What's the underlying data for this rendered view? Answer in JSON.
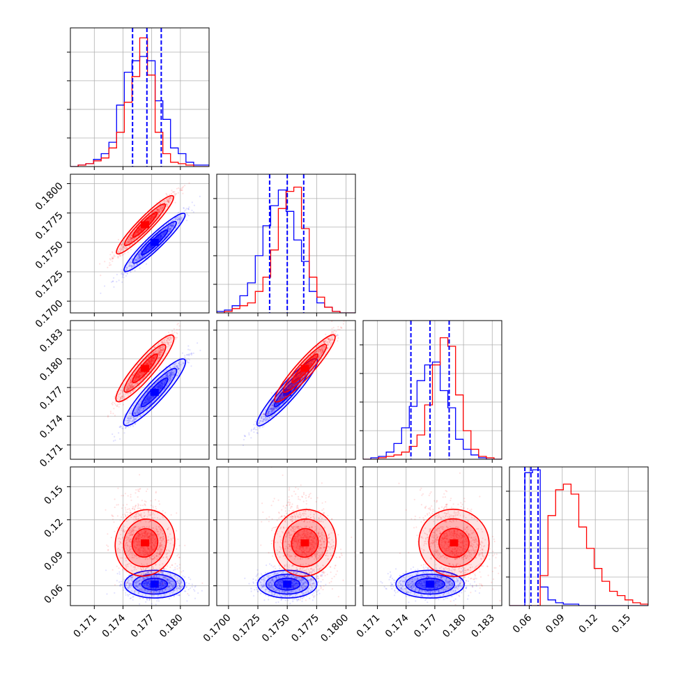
{
  "chart_data": {
    "type": "corner",
    "grid": true,
    "n_params": 4,
    "param_ranges": [
      [
        0.1685,
        0.183
      ],
      [
        0.169,
        0.1808
      ],
      [
        0.1695,
        0.184
      ],
      [
        0.042,
        0.168
      ]
    ],
    "param_ticks": [
      {
        "values": [
          0.171,
          0.174,
          0.177,
          0.18
        ],
        "labels": [
          "0.171",
          "0.174",
          "0.177",
          "0.180"
        ]
      },
      {
        "values": [
          0.17,
          0.1725,
          0.175,
          0.1775,
          0.18
        ],
        "labels": [
          "0.1700",
          "0.1725",
          "0.1750",
          "0.1775",
          "0.1800"
        ]
      },
      {
        "values": [
          0.171,
          0.174,
          0.177,
          0.18,
          0.183
        ],
        "labels": [
          "0.171",
          "0.174",
          "0.177",
          "0.180",
          "0.183"
        ]
      },
      {
        "values": [
          0.06,
          0.09,
          0.12,
          0.15
        ],
        "labels": [
          "0.06",
          "0.09",
          "0.12",
          "0.15"
        ]
      }
    ],
    "series": [
      {
        "color": "#0000ff",
        "means": [
          0.1773,
          0.175,
          0.1765,
          0.0615
        ],
        "sigmas": [
          0.0015,
          0.0012,
          0.0017,
          0.006
        ],
        "correlations": [
          [
            0,
            1,
            0.97
          ],
          [
            0,
            2,
            0.96
          ],
          [
            1,
            2,
            0.97
          ]
        ],
        "quantiles": [
          [
            0.175,
            0.1765,
            0.178
          ],
          [
            0.1735,
            0.175,
            0.1764
          ],
          [
            0.1745,
            0.1765,
            0.1785
          ],
          [
            0.056,
            0.0615,
            0.068
          ]
        ],
        "hist_heights": [
          [
            0.0,
            0.01,
            0.02,
            0.05,
            0.09,
            0.17,
            0.43,
            0.66,
            0.74,
            0.77,
            0.74,
            0.46,
            0.33,
            0.13,
            0.09,
            0.03,
            0.01,
            0.01
          ],
          [
            0.01,
            0.02,
            0.05,
            0.12,
            0.21,
            0.4,
            0.61,
            0.75,
            0.86,
            0.71,
            0.51,
            0.36,
            0.15,
            0.07,
            0.04,
            0.01,
            0.0,
            0.0
          ],
          [
            0.0,
            0.01,
            0.02,
            0.05,
            0.11,
            0.22,
            0.37,
            0.55,
            0.66,
            0.68,
            0.48,
            0.36,
            0.14,
            0.07,
            0.03,
            0.01,
            0.0,
            0.0
          ],
          [
            0.0,
            0.0,
            0.93,
            0.95,
            0.13,
            0.04,
            0.02,
            0.01,
            0.01,
            0.0,
            0.0,
            0.0,
            0.0,
            0.0,
            0.0,
            0.0,
            0.0,
            0.0
          ]
        ]
      },
      {
        "color": "#ff0000",
        "means": [
          0.1763,
          0.1765,
          0.179,
          0.099
        ],
        "sigmas": [
          0.0014,
          0.0012,
          0.0017,
          0.015
        ],
        "correlations": [
          [
            0,
            1,
            0.97
          ],
          [
            0,
            2,
            0.96
          ],
          [
            1,
            2,
            0.97
          ],
          [
            0,
            3,
            -0.25
          ],
          [
            1,
            3,
            -0.25
          ],
          [
            2,
            3,
            -0.25
          ]
        ],
        "quantiles": [],
        "hist_heights": [
          [
            0.0,
            0.01,
            0.02,
            0.04,
            0.06,
            0.13,
            0.24,
            0.45,
            0.63,
            0.9,
            0.64,
            0.24,
            0.09,
            0.03,
            0.02,
            0.01,
            0.0,
            0.0
          ],
          [
            0.0,
            0.01,
            0.03,
            0.05,
            0.07,
            0.15,
            0.25,
            0.44,
            0.73,
            0.85,
            0.88,
            0.59,
            0.25,
            0.11,
            0.04,
            0.01,
            0.0,
            0.0
          ],
          [
            0.0,
            0.0,
            0.01,
            0.02,
            0.03,
            0.05,
            0.09,
            0.17,
            0.38,
            0.66,
            0.85,
            0.79,
            0.45,
            0.2,
            0.07,
            0.02,
            0.01,
            0.0
          ],
          [
            0.0,
            0.0,
            0.0,
            0.0,
            0.21,
            0.63,
            0.81,
            0.85,
            0.78,
            0.55,
            0.4,
            0.26,
            0.17,
            0.1,
            0.07,
            0.04,
            0.02,
            0.01
          ]
        ]
      }
    ]
  }
}
